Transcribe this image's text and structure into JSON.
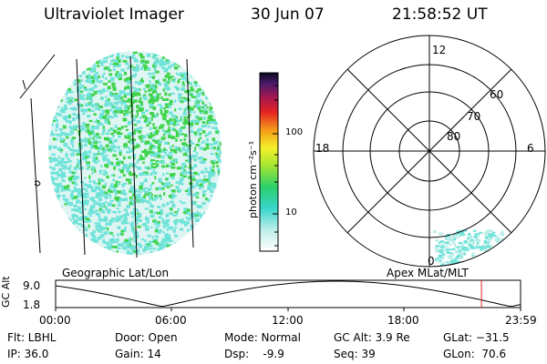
{
  "header": {
    "instrument": "Ultraviolet Imager",
    "date": "30 Jun 07",
    "time": "21:58:52 UT"
  },
  "colorbar": {
    "unit_label": "photon cm⁻²s⁻¹",
    "ticks": [
      "100",
      "10"
    ]
  },
  "polar": {
    "mlt_labels": {
      "top": "12",
      "left": "18",
      "right": "6",
      "bottom": "0"
    },
    "lat_labels": [
      "60",
      "70",
      "80"
    ]
  },
  "projection": {
    "left": "Geographic Lat/Lon",
    "right": "Apex MLat/MLT"
  },
  "altitude_plot": {
    "ylabel": "GC Alt",
    "yticks": [
      "9.0",
      "1.8"
    ],
    "xticks": [
      "00:00",
      "06:00",
      "12:00",
      "18:00",
      "23:59"
    ],
    "current_time": "21:58:52"
  },
  "footer": {
    "filter": "Flt: LBHL",
    "ip": "IP: 36.0",
    "door": "Door: Open",
    "gain": "Gain: 14",
    "mode": "Mode: Normal",
    "dsp": "Dsp:    -9.9",
    "gc_alt": "GC Alt: 3.9 Re",
    "seq": "Seq: 39",
    "glat": "GLat: −31.5",
    "glon": "GLon:  70.6"
  },
  "colors": {
    "emission_low": "#6fe3d9",
    "emission_high": "#3fd44a",
    "time_marker": "#e0202a"
  }
}
